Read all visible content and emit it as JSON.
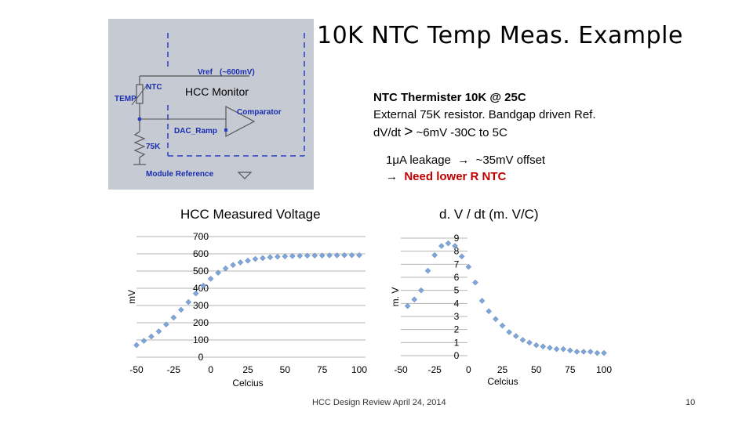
{
  "slide": {
    "title": "10K NTC Temp Meas. Example",
    "footer": "HCC Design Review April 24, 2014",
    "page_number": "10"
  },
  "schematic": {
    "hcc_label": "HCC Monitor",
    "vref_label": "Vref",
    "vref_value": "(~600mV)",
    "ntc_label": "NTC",
    "temp_label": "TEMP",
    "comparator_label": "Comparator",
    "dac_label": "DAC_Ramp",
    "resistor_label": "75K",
    "module_ref_label": "Module Reference",
    "colors": {
      "bg": "#c6cbd3",
      "dash": "#2a3cc8",
      "text": "#1a2db0",
      "wire": "#555555"
    }
  },
  "description": {
    "line1": "NTC Thermister 10K @ 25C",
    "line2": "External 75K resistor. Bandgap driven Ref.",
    "line3_a": "dV/dt",
    "line3_b": ">",
    "line3_c": "~6mV -30C to 5C",
    "leak_a": "1μA leakage",
    "leak_b": "~35mV offset",
    "need": "Need lower R NTC"
  },
  "chart_data": [
    {
      "type": "scatter",
      "title": "HCC Measured Voltage",
      "xlabel": "Celcius",
      "ylabel": "mV",
      "xlim": [
        -50,
        100
      ],
      "ylim": [
        0,
        700
      ],
      "x_ticks": [
        "-50",
        "-25",
        "0",
        "25",
        "50",
        "75",
        "100"
      ],
      "y_ticks": [
        "0",
        "100",
        "200",
        "300",
        "400",
        "500",
        "600",
        "700"
      ],
      "grid": true,
      "marker_color": "#7ea6d8",
      "series": [
        {
          "x": [
            -50,
            -45,
            -40,
            -35,
            -30,
            -25,
            -20,
            -15,
            -10,
            -5,
            0,
            5,
            10,
            15,
            20,
            25,
            30,
            35,
            40,
            45,
            50,
            55,
            60,
            65,
            70,
            75,
            80,
            85,
            90,
            95,
            100
          ],
          "y": [
            70,
            95,
            120,
            150,
            190,
            230,
            275,
            320,
            370,
            415,
            455,
            490,
            515,
            535,
            550,
            560,
            570,
            575,
            580,
            583,
            585,
            587,
            588,
            589,
            590,
            590,
            591,
            591,
            592,
            592,
            592
          ]
        }
      ]
    },
    {
      "type": "scatter",
      "title": "d. V / dt (m. V/C)",
      "xlabel": "Celcius",
      "ylabel": "m. V",
      "xlim": [
        -50,
        100
      ],
      "ylim": [
        0,
        9
      ],
      "x_ticks": [
        "-50",
        "-25",
        "0",
        "25",
        "50",
        "75",
        "100"
      ],
      "y_ticks": [
        "0",
        "1",
        "2",
        "3",
        "4",
        "5",
        "6",
        "7",
        "8",
        "9"
      ],
      "grid": true,
      "marker_color": "#7ea6d8",
      "series": [
        {
          "x": [
            -45,
            -40,
            -35,
            -30,
            -25,
            -20,
            -15,
            -10,
            -5,
            0,
            5,
            10,
            15,
            20,
            25,
            30,
            35,
            40,
            45,
            50,
            55,
            60,
            65,
            70,
            75,
            80,
            85,
            90,
            95,
            100
          ],
          "y": [
            3.8,
            4.3,
            5.0,
            6.5,
            7.7,
            8.4,
            8.6,
            8.4,
            7.6,
            6.8,
            5.6,
            4.2,
            3.4,
            2.8,
            2.3,
            1.8,
            1.5,
            1.2,
            1.0,
            0.8,
            0.7,
            0.6,
            0.5,
            0.5,
            0.4,
            0.3,
            0.3,
            0.3,
            0.2,
            0.2
          ]
        }
      ]
    }
  ]
}
